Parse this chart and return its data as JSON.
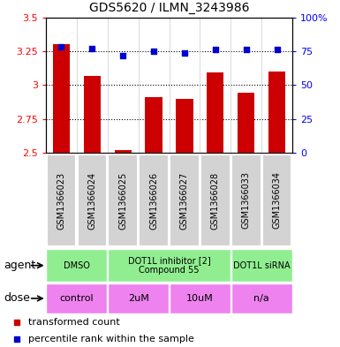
{
  "title": "GDS5620 / ILMN_3243986",
  "samples": [
    "GSM1366023",
    "GSM1366024",
    "GSM1366025",
    "GSM1366026",
    "GSM1366027",
    "GSM1366028",
    "GSM1366033",
    "GSM1366034"
  ],
  "red_values": [
    3.3,
    3.07,
    2.52,
    2.91,
    2.9,
    3.09,
    2.94,
    3.1
  ],
  "blue_values": [
    78,
    77,
    72,
    75,
    74,
    76,
    76,
    76
  ],
  "ylim_left": [
    2.5,
    3.5
  ],
  "ylim_right": [
    0,
    100
  ],
  "yticks_left": [
    2.5,
    2.75,
    3.0,
    3.25,
    3.5
  ],
  "yticks_right": [
    0,
    25,
    50,
    75,
    100
  ],
  "ytick_labels_left": [
    "2.5",
    "2.75",
    "3",
    "3.25",
    "3.5"
  ],
  "ytick_labels_right": [
    "0",
    "25",
    "50",
    "75",
    "100%"
  ],
  "agent_groups": [
    {
      "label": "DMSO",
      "start": 0,
      "end": 2,
      "color": "#90EE90"
    },
    {
      "label": "DOT1L inhibitor [2]\nCompound 55",
      "start": 2,
      "end": 6,
      "color": "#90EE90"
    },
    {
      "label": "DOT1L siRNA",
      "start": 6,
      "end": 8,
      "color": "#90EE90"
    }
  ],
  "dose_groups": [
    {
      "label": "control",
      "start": 0,
      "end": 2,
      "color": "#EE82EE"
    },
    {
      "label": "2uM",
      "start": 2,
      "end": 4,
      "color": "#EE82EE"
    },
    {
      "label": "10uM",
      "start": 4,
      "end": 6,
      "color": "#EE82EE"
    },
    {
      "label": "n/a",
      "start": 6,
      "end": 8,
      "color": "#EE82EE"
    }
  ],
  "bar_color": "#CC0000",
  "dot_color": "#0000CC",
  "bar_width": 0.55,
  "legend_red": "transformed count",
  "legend_blue": "percentile rank within the sample",
  "agent_label": "agent",
  "dose_label": "dose",
  "gray_box_color": "#D3D3D3",
  "sample_font_size": 7,
  "agent_dose_font_size": 8,
  "legend_font_size": 8
}
